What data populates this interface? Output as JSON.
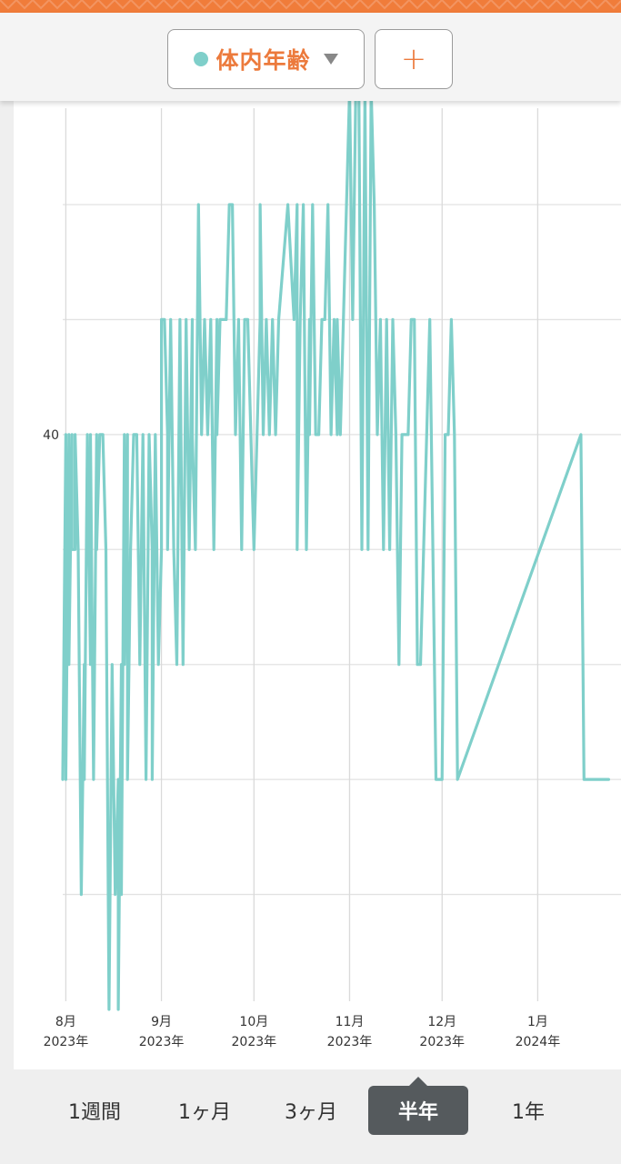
{
  "header": {
    "metric_label": "体内年齢",
    "metric_color": "#7fcfca",
    "add_label": "+",
    "caret_icon": "triangle-down-icon"
  },
  "period_tabs": [
    {
      "label": "1週間",
      "active": false
    },
    {
      "label": "1ヶ月",
      "active": false
    },
    {
      "label": "3ヶ月",
      "active": false
    },
    {
      "label": "半年",
      "active": true
    },
    {
      "label": "1年",
      "active": false
    }
  ],
  "chart_data": {
    "type": "line",
    "title": "",
    "xlabel": "",
    "ylabel": "",
    "ylim": [
      35,
      42
    ],
    "yticks": [
      {
        "value": 40,
        "label": "40"
      }
    ],
    "grid": true,
    "xlim": [
      "2023-07-31",
      "2024-01-28"
    ],
    "x_ticks": [
      {
        "date": "2023-08-01",
        "month": "8月",
        "year": "2023年"
      },
      {
        "date": "2023-09-01",
        "month": "9月",
        "year": "2023年"
      },
      {
        "date": "2023-10-01",
        "month": "10月",
        "year": "2023年"
      },
      {
        "date": "2023-11-01",
        "month": "11月",
        "year": "2023年"
      },
      {
        "date": "2023-12-01",
        "month": "12月",
        "year": "2023年"
      },
      {
        "date": "2024-01-01",
        "month": "1月",
        "year": "2024年"
      }
    ],
    "series": [
      {
        "color": "#7fcfca",
        "x": [
          "2023-07-31",
          "2023-08-01",
          "2023-08-01",
          "2023-08-02",
          "2023-08-02",
          "2023-08-03",
          "2023-08-03",
          "2023-08-04",
          "2023-08-04",
          "2023-08-05",
          "2023-08-06",
          "2023-08-07",
          "2023-08-07",
          "2023-08-08",
          "2023-08-09",
          "2023-08-09",
          "2023-08-10",
          "2023-08-11",
          "2023-08-11",
          "2023-08-12",
          "2023-08-13",
          "2023-08-14",
          "2023-08-15",
          "2023-08-16",
          "2023-08-17",
          "2023-08-18",
          "2023-08-18",
          "2023-08-19",
          "2023-08-19",
          "2023-08-20",
          "2023-08-20",
          "2023-08-21",
          "2023-08-21",
          "2023-08-22",
          "2023-08-23",
          "2023-08-24",
          "2023-08-25",
          "2023-08-26",
          "2023-08-27",
          "2023-08-28",
          "2023-08-29",
          "2023-08-29",
          "2023-08-30",
          "2023-08-31",
          "2023-09-01",
          "2023-09-01",
          "2023-09-02",
          "2023-09-03",
          "2023-09-03",
          "2023-09-04",
          "2023-09-05",
          "2023-09-06",
          "2023-09-07",
          "2023-09-08",
          "2023-09-09",
          "2023-09-10",
          "2023-09-11",
          "2023-09-11",
          "2023-09-12",
          "2023-09-13",
          "2023-09-14",
          "2023-09-15",
          "2023-09-16",
          "2023-09-17",
          "2023-09-18",
          "2023-09-19",
          "2023-09-19",
          "2023-09-20",
          "2023-09-21",
          "2023-09-22",
          "2023-09-23",
          "2023-09-24",
          "2023-09-25",
          "2023-09-26",
          "2023-09-27",
          "2023-09-28",
          "2023-09-29",
          "2023-09-30",
          "2023-10-01",
          "2023-10-02",
          "2023-10-03",
          "2023-10-03",
          "2023-10-04",
          "2023-10-05",
          "2023-10-06",
          "2023-10-07",
          "2023-10-08",
          "2023-10-09",
          "2023-10-12",
          "2023-10-14",
          "2023-10-15",
          "2023-10-15",
          "2023-10-16",
          "2023-10-17",
          "2023-10-18",
          "2023-10-19",
          "2023-10-19",
          "2023-10-20",
          "2023-10-21",
          "2023-10-22",
          "2023-10-23",
          "2023-10-24",
          "2023-10-25",
          "2023-10-26",
          "2023-10-27",
          "2023-10-28",
          "2023-10-28",
          "2023-10-29",
          "2023-10-30",
          "2023-10-31",
          "2023-11-01",
          "2023-11-02",
          "2023-11-03",
          "2023-11-04",
          "2023-11-05",
          "2023-11-06",
          "2023-11-07",
          "2023-11-08",
          "2023-11-09",
          "2023-11-10",
          "2023-11-11",
          "2023-11-12",
          "2023-11-13",
          "2023-11-14",
          "2023-11-15",
          "2023-11-16",
          "2023-11-17",
          "2023-11-18",
          "2023-11-19",
          "2023-11-20",
          "2023-11-21",
          "2023-11-22",
          "2023-11-23",
          "2023-11-24",
          "2023-11-27",
          "2023-11-29",
          "2023-12-01",
          "2023-12-02",
          "2023-12-03",
          "2023-12-04",
          "2023-12-05",
          "2023-12-06",
          "2024-01-15",
          "2024-01-16",
          "2024-01-24"
        ],
        "values": [
          37,
          40,
          37,
          40,
          38,
          40,
          39,
          39,
          40,
          39,
          36,
          38,
          37,
          40,
          38,
          40,
          37,
          40,
          39,
          40,
          40,
          39,
          35,
          38,
          36,
          37,
          35,
          38,
          36,
          40,
          38,
          40,
          37,
          39,
          40,
          40,
          38,
          40,
          37,
          40,
          39,
          37,
          40,
          38,
          39,
          41,
          41,
          40,
          39,
          41,
          39,
          38,
          41,
          38,
          41,
          39,
          41,
          40,
          39,
          42,
          40,
          41,
          40,
          41,
          39,
          41,
          40,
          41,
          41,
          41,
          42,
          42,
          40,
          41,
          39,
          41,
          41,
          40,
          39,
          40,
          41,
          42,
          40,
          41,
          40,
          41,
          40,
          41,
          42,
          41,
          42,
          39,
          41,
          42,
          39,
          41,
          40,
          42,
          40,
          40,
          41,
          41,
          42,
          40,
          41,
          40,
          41,
          40,
          41,
          42,
          43,
          41,
          43,
          43,
          39,
          43,
          39,
          43,
          42,
          40,
          41,
          39,
          41,
          39,
          41,
          40,
          38,
          40,
          40,
          40,
          41,
          41,
          38,
          38,
          41,
          37,
          37,
          40,
          40,
          41,
          40,
          37,
          40,
          37,
          37
        ]
      }
    ]
  }
}
